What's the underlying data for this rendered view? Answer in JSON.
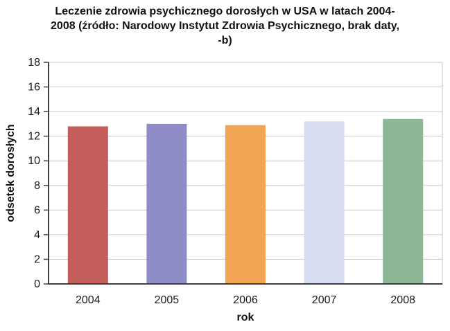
{
  "chart_data": {
    "type": "bar",
    "title": "Leczenie zdrowia psychicznego dorosłych w USA w latach 2004-2008 (źródło: Narodowy Instytut Zdrowia Psychicznego, brak daty, -b)",
    "categories": [
      "2004",
      "2005",
      "2006",
      "2007",
      "2008"
    ],
    "values": [
      12.8,
      13.0,
      12.9,
      13.2,
      13.4
    ],
    "bar_colors": [
      "#c35e5a",
      "#8f8dc7",
      "#f2a455",
      "#d6ddf0",
      "#8db897"
    ],
    "xlabel": "rok",
    "ylabel": "odsetek dorosłych",
    "ylim": [
      0,
      18
    ],
    "ytick_step": 2,
    "grid": true,
    "legend": "none",
    "axis_color": "#3f3f3f",
    "grid_color": "#c9c9c9"
  }
}
